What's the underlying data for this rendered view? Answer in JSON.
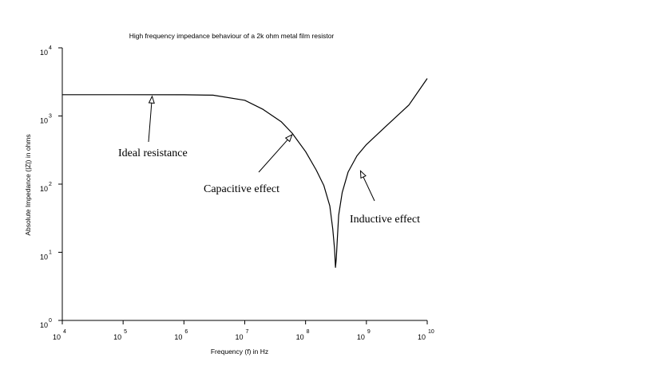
{
  "chart_data": {
    "type": "line",
    "title": "High frequency impedance behaviour of a 2k ohm metal film resistor",
    "xlabel": "Frequency  (f) in Hz",
    "ylabel": "Absolute Impedance (|Z|) in ohms",
    "x_scale": "log",
    "y_scale": "log",
    "xlim": [
      10000,
      10000000000
    ],
    "ylim": [
      1,
      10000
    ],
    "x_ticks": [
      {
        "base": "10",
        "exp": "4"
      },
      {
        "base": "10",
        "exp": "5"
      },
      {
        "base": "10",
        "exp": "6"
      },
      {
        "base": "10",
        "exp": "7"
      },
      {
        "base": "10",
        "exp": "8"
      },
      {
        "base": "10",
        "exp": "9"
      },
      {
        "base": "10",
        "exp": "10"
      }
    ],
    "y_ticks": [
      {
        "base": "10",
        "exp": "0"
      },
      {
        "base": "10",
        "exp": "1"
      },
      {
        "base": "10",
        "exp": "2"
      },
      {
        "base": "10",
        "exp": "3"
      },
      {
        "base": "10",
        "exp": "4"
      }
    ],
    "grid": false,
    "series": [
      {
        "color": "#000000",
        "points": [
          [
            10000,
            2050
          ],
          [
            100000,
            2050
          ],
          [
            1000000,
            2045
          ],
          [
            3000000,
            2020
          ],
          [
            10000000,
            1700
          ],
          [
            20000000,
            1250
          ],
          [
            40000000,
            820
          ],
          [
            60000000,
            560
          ],
          [
            100000000,
            300
          ],
          [
            150000000,
            160
          ],
          [
            200000000,
            95
          ],
          [
            250000000,
            48
          ],
          [
            280000000,
            22
          ],
          [
            300000000,
            11
          ],
          [
            310000000,
            6
          ],
          [
            320000000,
            8
          ],
          [
            330000000,
            14
          ],
          [
            350000000,
            35
          ],
          [
            400000000,
            75
          ],
          [
            500000000,
            150
          ],
          [
            700000000,
            260
          ],
          [
            1000000000,
            380
          ],
          [
            2000000000,
            680
          ],
          [
            5000000000,
            1450
          ],
          [
            10000000000,
            3550
          ]
        ]
      }
    ],
    "annotations": [
      {
        "text": "Ideal resistance",
        "target": [
          300000,
          2050
        ]
      },
      {
        "text": "Capacitive effect",
        "target": [
          60000000,
          560
        ]
      },
      {
        "text": "Inductive effect",
        "target": [
          800000000,
          165
        ]
      }
    ]
  }
}
